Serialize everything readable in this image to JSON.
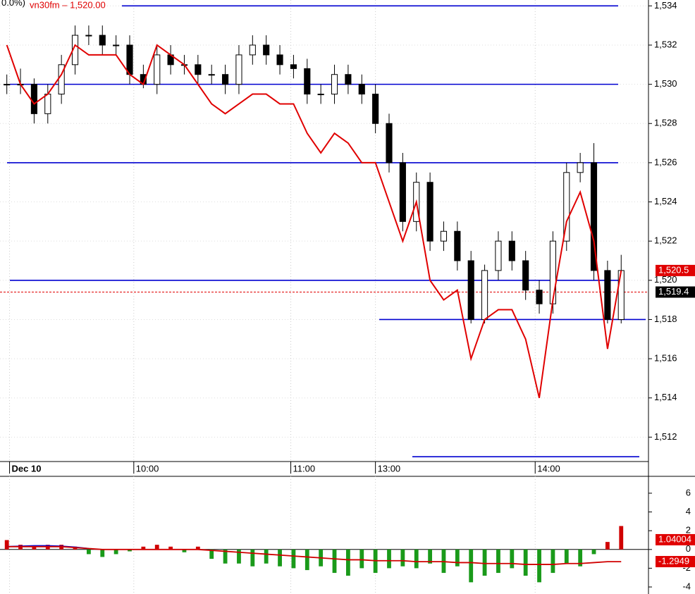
{
  "chart_data": [
    {
      "type": "candlestick",
      "prefix": "0.0%)",
      "title": "vn30fm – 1,520.00",
      "x": [
        0,
        1,
        2,
        3,
        4,
        5,
        6,
        7,
        8,
        9,
        10,
        11,
        12,
        13,
        14,
        15,
        16,
        17,
        18,
        19,
        20,
        21,
        22,
        23,
        24,
        25,
        26,
        27,
        28,
        29,
        30,
        31,
        32,
        33,
        34,
        35,
        36,
        37,
        38,
        39,
        40,
        41,
        42,
        43,
        44,
        45
      ],
      "open": [
        1530,
        1530,
        1530,
        1528.5,
        1529.5,
        1531,
        1532.5,
        1532.5,
        1532,
        1532,
        1530.5,
        1530,
        1531.5,
        1531,
        1531,
        1530.5,
        1530.5,
        1530,
        1531.5,
        1532,
        1531.5,
        1531,
        1530.8,
        1529.5,
        1529.5,
        1530.5,
        1530,
        1529.5,
        1528,
        1526,
        1523,
        1525,
        1522,
        1522.5,
        1521,
        1518,
        1520.5,
        1522,
        1521,
        1519.5,
        1518.8,
        1522,
        1525.5,
        1526,
        1520.5,
        1518
      ],
      "high": [
        1530.5,
        1530.8,
        1530.3,
        1530,
        1531.5,
        1533,
        1533,
        1533,
        1532.5,
        1532.5,
        1531,
        1532,
        1532,
        1531.5,
        1531.5,
        1531,
        1531,
        1532,
        1532.5,
        1532.5,
        1532,
        1531.5,
        1531.3,
        1530,
        1531,
        1531,
        1530.5,
        1530,
        1528.5,
        1526.5,
        1525.5,
        1525.5,
        1523,
        1523,
        1521.5,
        1520.8,
        1522.5,
        1522.5,
        1521.5,
        1520,
        1522.5,
        1526,
        1526.5,
        1527,
        1521,
        1521.3
      ],
      "low": [
        1529.5,
        1529.5,
        1528,
        1528,
        1529,
        1530.5,
        1532,
        1531.5,
        1531.5,
        1530,
        1529.8,
        1529.5,
        1530.5,
        1530.5,
        1530,
        1530,
        1529.5,
        1529.5,
        1531,
        1531,
        1530.5,
        1530.3,
        1529,
        1529,
        1529,
        1529.5,
        1529,
        1527.5,
        1525.5,
        1522.5,
        1522.5,
        1521.5,
        1521.5,
        1520.5,
        1517.8,
        1517.8,
        1520,
        1520.5,
        1519,
        1518.3,
        1518.3,
        1521.5,
        1525,
        1520,
        1517.8,
        1517.8
      ],
      "close": [
        1530,
        1530,
        1528.5,
        1529.5,
        1531,
        1532.5,
        1532.5,
        1532,
        1532,
        1530.5,
        1530,
        1531.5,
        1531,
        1531,
        1530.5,
        1530.5,
        1530,
        1531.5,
        1532,
        1531.5,
        1531,
        1530.8,
        1529.5,
        1529.5,
        1530.5,
        1530,
        1529.5,
        1528,
        1526,
        1523,
        1525,
        1522,
        1522.5,
        1521,
        1518,
        1520.5,
        1522,
        1521,
        1519.5,
        1518.8,
        1522,
        1525.5,
        1526,
        1520.5,
        1518,
        1520.5
      ],
      "series": [
        {
          "name": "vn30fm",
          "color": "#e00000",
          "values": [
            1532,
            1530,
            1529,
            1529.5,
            1530.5,
            1532,
            1531.5,
            1531.5,
            1531.5,
            1530.5,
            1530,
            1532,
            1531.5,
            1531,
            1530,
            1529,
            1528.5,
            1529,
            1529.5,
            1529.5,
            1529,
            1529,
            1527.5,
            1526.5,
            1527.5,
            1527,
            1526,
            1526,
            1524,
            1522,
            1524,
            1520,
            1519,
            1519.5,
            1516,
            1518,
            1518.5,
            1518.5,
            1517,
            1514,
            1519,
            1523,
            1524.5,
            1522,
            1516.5,
            1520.5
          ]
        }
      ],
      "levels": [
        1534,
        1530,
        1526,
        1520,
        1518,
        1511
      ],
      "level_color": "#0000d0",
      "last_price": {
        "value": 1519.4,
        "label": "1,519.4"
      },
      "line_price": {
        "value": 1520.5,
        "label": "1,520.5"
      },
      "xlim": [
        -0.5,
        47
      ],
      "xticks": [
        {
          "value": 0.2,
          "label": "Dec 10"
        },
        {
          "value": 9.3,
          "label": "10:00"
        },
        {
          "value": 20.8,
          "label": "11:00"
        },
        {
          "value": 27,
          "label": "13:00"
        },
        {
          "value": 38.7,
          "label": "14:00"
        }
      ],
      "ylim": [
        1510,
        1534.3
      ],
      "yticks": [
        {
          "value": 1512,
          "label": "1,512"
        },
        {
          "value": 1514,
          "label": "1,514"
        },
        {
          "value": 1516,
          "label": "1,516"
        },
        {
          "value": 1518,
          "label": "1,518"
        },
        {
          "value": 1520,
          "label": "1,520"
        },
        {
          "value": 1522,
          "label": "1,522"
        },
        {
          "value": 1524,
          "label": "1,524"
        },
        {
          "value": 1526,
          "label": "1,526"
        },
        {
          "value": 1528,
          "label": "1,528"
        },
        {
          "value": 1530,
          "label": "1,530"
        },
        {
          "value": 1532,
          "label": "1,532"
        },
        {
          "value": 1534,
          "label": "1,534"
        }
      ],
      "grid": true
    },
    {
      "type": "histogram-indicator",
      "x": [
        0,
        1,
        2,
        3,
        4,
        5,
        6,
        7,
        8,
        9,
        10,
        11,
        12,
        13,
        14,
        15,
        16,
        17,
        18,
        19,
        20,
        21,
        22,
        23,
        24,
        25,
        26,
        27,
        28,
        29,
        30,
        31,
        32,
        33,
        34,
        35,
        36,
        37,
        38,
        39,
        40,
        41,
        42,
        43,
        44,
        45
      ],
      "values": [
        1.0,
        0.5,
        0.3,
        0.5,
        0.5,
        0.3,
        -0.5,
        -0.8,
        -0.5,
        -0.2,
        0.3,
        0.5,
        0.3,
        -0.3,
        0.3,
        -1,
        -1.5,
        -1.5,
        -1.8,
        -1.5,
        -1.8,
        -2,
        -2.2,
        -1.8,
        -2.5,
        -2.8,
        -2,
        -2.5,
        -2,
        -1.8,
        -2,
        -1.5,
        -2.5,
        -1.8,
        -3.5,
        -2.8,
        -2.5,
        -2,
        -2.8,
        -3.5,
        -2.5,
        -1.5,
        -1.8,
        -0.5,
        0.8,
        2.5
      ],
      "pos_color": "#d00000",
      "neg_color": "#1a9a1a",
      "series": [
        {
          "color": "#0000d0",
          "values": [
            0.3,
            0.35,
            0.4,
            0.4,
            0.35,
            0.25,
            0.1,
            null,
            null,
            null,
            null,
            null,
            null,
            null,
            null,
            null,
            null,
            null,
            null,
            null,
            null,
            null,
            null,
            null,
            null,
            null,
            null,
            null,
            null,
            null,
            null,
            null,
            null,
            null,
            null,
            null,
            null,
            null,
            null,
            null,
            null,
            null,
            null,
            null,
            null,
            null
          ]
        },
        {
          "color": "#d00000",
          "values": [
            0.3,
            0.3,
            0.3,
            0.3,
            0.3,
            0.2,
            0.1,
            0,
            0,
            0,
            0,
            0,
            0,
            0,
            0,
            -0.1,
            -0.2,
            -0.3,
            -0.4,
            -0.5,
            -0.6,
            -0.7,
            -0.8,
            -0.9,
            -1,
            -1.1,
            -1.1,
            -1.2,
            -1.2,
            -1.2,
            -1.3,
            -1.3,
            -1.3,
            -1.4,
            -1.4,
            -1.5,
            -1.5,
            -1.5,
            -1.6,
            -1.6,
            -1.6,
            -1.5,
            -1.5,
            -1.4,
            -1.3,
            -1.3
          ]
        }
      ],
      "value_tag": {
        "value": 1.04004,
        "label": "1.04004"
      },
      "signal_tag": {
        "value": -1.2949,
        "label": "-1.2949"
      },
      "xlim": [
        -0.5,
        47
      ],
      "ylim": [
        -4.75,
        7.8
      ],
      "yticks": [
        -4,
        -2,
        0,
        2,
        4,
        6
      ]
    }
  ]
}
